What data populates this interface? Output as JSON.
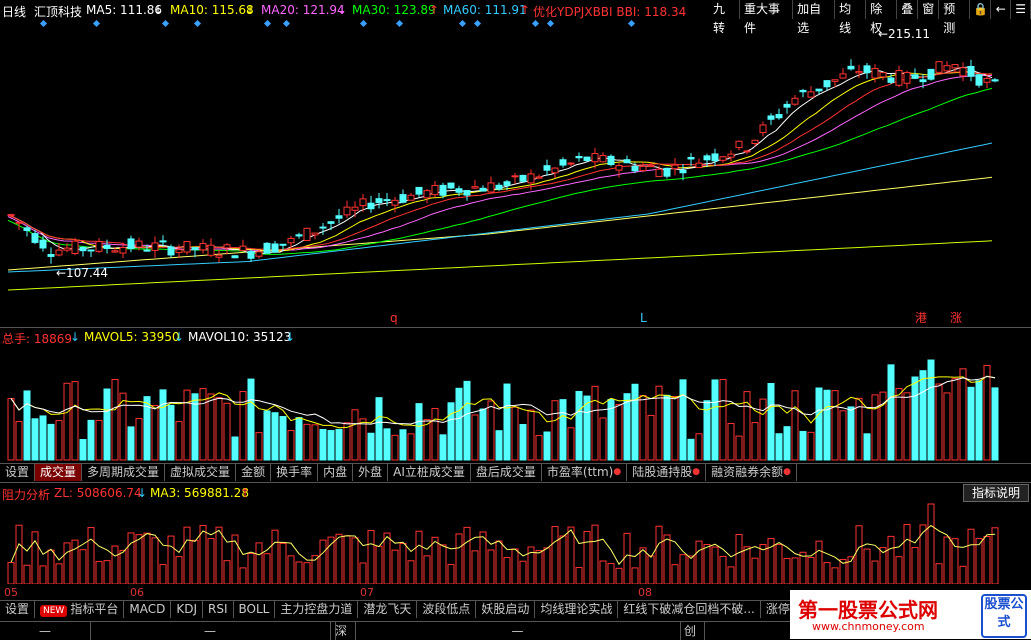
{
  "header": {
    "period": "日线",
    "stock_name": "汇顶科技",
    "ma5": "MA5: 111.86",
    "ma10": "MA10: 115.68",
    "ma20": "MA20: 121.94",
    "ma30": "MA30: 123.89",
    "ma60": "MA60: 111.91",
    "bbi": "优化YDPJXBBI BBI: 118.34",
    "buttons": [
      "九转",
      "重大事件",
      "加自选",
      "均线",
      "除权",
      "叠",
      "窗",
      "预测"
    ],
    "icons": [
      "lock-icon",
      "back-icon",
      "menu-icon"
    ],
    "colors": {
      "ma5": "#ffffff",
      "ma10": "#ffff00",
      "ma20": "#ff66ff",
      "ma30": "#00ff00",
      "ma60": "#33ccff",
      "bbi": "#ff3333"
    }
  },
  "main_chart": {
    "high_label": "215.11",
    "low_label": "107.44",
    "markers": [
      "q",
      "L",
      "港",
      "涨"
    ]
  },
  "volume_panel": {
    "label_total": "总手: 18869",
    "label_mavol5": "MAVOL5: 33950",
    "label_mavol10": "MAVOL10: 35123",
    "tabs": [
      {
        "label": "设置",
        "active": false,
        "dot": false
      },
      {
        "label": "成交量",
        "active": true,
        "dot": false
      },
      {
        "label": "多周期成交量",
        "active": false,
        "dot": false
      },
      {
        "label": "虚拟成交量",
        "active": false,
        "dot": false
      },
      {
        "label": "金额",
        "active": false,
        "dot": false
      },
      {
        "label": "换手率",
        "active": false,
        "dot": false
      },
      {
        "label": "内盘",
        "active": false,
        "dot": false
      },
      {
        "label": "外盘",
        "active": false,
        "dot": false
      },
      {
        "label": "AI立桩成交量",
        "active": false,
        "dot": false
      },
      {
        "label": "盘后成交量",
        "active": false,
        "dot": false
      },
      {
        "label": "市盈率(ttm)",
        "active": false,
        "dot": true
      },
      {
        "label": "陆股通持股",
        "active": false,
        "dot": true
      },
      {
        "label": "融资融券余额",
        "active": false,
        "dot": true
      }
    ]
  },
  "indicator_panel": {
    "label_name": "阻力分析",
    "label_zl": "ZL: 508606.74",
    "label_ma3": "MA3: 569881.28",
    "explain_button": "指标说明",
    "date_labels": [
      "05",
      "06",
      "07",
      "08"
    ],
    "tabs": [
      {
        "label": "设置",
        "new": false
      },
      {
        "label": "指标平台",
        "new": true
      },
      {
        "label": "MACD",
        "new": false
      },
      {
        "label": "KDJ",
        "new": false
      },
      {
        "label": "RSI",
        "new": false
      },
      {
        "label": "BOLL",
        "new": false
      },
      {
        "label": "主力控盘力道",
        "new": false
      },
      {
        "label": "潜龙飞天",
        "new": false
      },
      {
        "label": "波段低点",
        "new": false
      },
      {
        "label": "妖股启动",
        "new": false
      },
      {
        "label": "均线理论实战",
        "new": false
      },
      {
        "label": "红线下破减仓回档不破...",
        "new": false
      },
      {
        "label": "涨停",
        "new": false
      }
    ]
  },
  "status_bar": {
    "segments": [
      "—",
      "—",
      "—",
      "深",
      "—",
      "创"
    ]
  },
  "watermark": {
    "title": "第一股票公式网",
    "url": "www.chnmoney.com",
    "box": "股票公式"
  },
  "chart_data": {
    "type": "candlestick",
    "title": "",
    "high": 215.11,
    "low": 107.44,
    "x_month_ticks": [
      "05",
      "06",
      "07",
      "08"
    ],
    "moving_averages": [
      {
        "name": "MA5",
        "value": 111.86
      },
      {
        "name": "MA10",
        "value": 115.68
      },
      {
        "name": "MA20",
        "value": 121.94
      },
      {
        "name": "MA30",
        "value": 123.89
      },
      {
        "name": "MA60",
        "value": 111.91
      },
      {
        "name": "BBI",
        "value": 118.34
      }
    ],
    "volume": {
      "total": 18869,
      "mavol5": 33950,
      "mavol10": 35123
    },
    "indicator": {
      "zl": 508606.74,
      "ma3": 569881.28
    }
  }
}
